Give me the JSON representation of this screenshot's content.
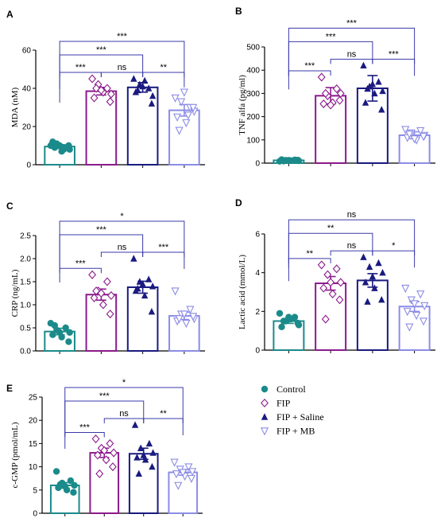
{
  "groups": [
    {
      "name": "Control",
      "color": "#1b8a8a",
      "marker": "circle"
    },
    {
      "name": "FIP",
      "color": "#8b1a8b",
      "marker": "diamond-open"
    },
    {
      "name": "FIP + Saline",
      "color": "#1a1a80",
      "marker": "triangle-filled"
    },
    {
      "name": "FIP + MB",
      "color": "#8c8ce6",
      "marker": "triangle-down-open"
    }
  ],
  "chart_data": [
    {
      "panel": "A",
      "type": "bar",
      "ylabel": "MDA (nM)",
      "ylim": [
        0,
        60
      ],
      "yticks": [
        0,
        20,
        40,
        60
      ],
      "yticks_labels": [
        "0",
        "20",
        "40",
        "60"
      ],
      "categories": [
        "Control",
        "FIP",
        "FIP + Saline",
        "FIP + MB"
      ],
      "values": [
        9.5,
        38.5,
        40.5,
        28.5
      ],
      "errors": [
        1.0,
        2.0,
        2.5,
        3.0
      ],
      "points": [
        [
          10,
          9,
          11,
          8,
          12,
          7,
          10,
          9,
          10,
          8
        ],
        [
          45,
          40,
          42,
          37,
          35,
          38,
          33,
          40,
          39
        ],
        [
          45,
          40,
          42,
          36,
          38,
          44,
          32,
          39,
          41
        ],
        [
          35,
          30,
          33,
          28,
          25,
          22,
          30,
          18,
          38,
          26
        ]
      ],
      "comparisons": [
        {
          "from": 0,
          "to": 1,
          "label": "***",
          "level": 1
        },
        {
          "from": 1,
          "to": 2,
          "label": "ns",
          "level": 1
        },
        {
          "from": 2,
          "to": 3,
          "label": "**",
          "level": 1
        },
        {
          "from": 0,
          "to": 2,
          "label": "***",
          "level": 2
        },
        {
          "from": 0,
          "to": 3,
          "label": "***",
          "level": 3
        }
      ]
    },
    {
      "panel": "B",
      "type": "bar",
      "ylabel": "TNF alfa (pg/ml)",
      "ylim": [
        0,
        500
      ],
      "yticks": [
        0,
        100,
        200,
        300,
        400,
        500
      ],
      "yticks_labels": [
        "0",
        "100",
        "200",
        "300",
        "400",
        "500"
      ],
      "categories": [
        "Control",
        "FIP",
        "FIP + Saline",
        "FIP + MB"
      ],
      "values": [
        12,
        290,
        322,
        120
      ],
      "errors": [
        4,
        35,
        55,
        15
      ],
      "points": [
        [
          8,
          14,
          12,
          10,
          15,
          11,
          13,
          9,
          12
        ],
        [
          370,
          320,
          290,
          300,
          255,
          260,
          270,
          300,
          250
        ],
        [
          420,
          350,
          330,
          310,
          260,
          300,
          230,
          320,
          340
        ],
        [
          145,
          140,
          130,
          120,
          110,
          100,
          115,
          125,
          105
        ]
      ],
      "comparisons": [
        {
          "from": 0,
          "to": 1,
          "label": "***",
          "level": 1
        },
        {
          "from": 1,
          "to": 2,
          "label": "ns",
          "level": 1
        },
        {
          "from": 2,
          "to": 3,
          "label": "***",
          "level": 1
        },
        {
          "from": 0,
          "to": 2,
          "label": "***",
          "level": 2
        },
        {
          "from": 0,
          "to": 3,
          "label": "***",
          "level": 3
        }
      ]
    },
    {
      "panel": "C",
      "type": "bar",
      "ylabel": "CRP (ng/mL)",
      "ylim": [
        0,
        2.5
      ],
      "yticks": [
        0,
        0.5,
        1.0,
        1.5,
        2.0,
        2.5
      ],
      "yticks_labels": [
        "0.0",
        "0.5",
        "1.0",
        "1.5",
        "2.0",
        "2.5"
      ],
      "categories": [
        "Control",
        "FIP",
        "FIP + Saline",
        "FIP + MB"
      ],
      "values": [
        0.42,
        1.22,
        1.38,
        0.76
      ],
      "errors": [
        0.07,
        0.12,
        0.13,
        0.08
      ],
      "points": [
        [
          0.6,
          0.5,
          0.45,
          0.4,
          0.35,
          0.3,
          0.2,
          0.55,
          0.4
        ],
        [
          1.65,
          1.5,
          1.3,
          1.2,
          1.15,
          1.0,
          0.8,
          1.3,
          1.25
        ],
        [
          2.0,
          1.55,
          1.5,
          1.4,
          1.3,
          1.2,
          0.85,
          1.35,
          1.45
        ],
        [
          1.3,
          0.9,
          0.8,
          0.7,
          0.65,
          0.6,
          0.75,
          0.7,
          0.8
        ]
      ],
      "comparisons": [
        {
          "from": 0,
          "to": 1,
          "label": "***",
          "level": 1
        },
        {
          "from": 1,
          "to": 2,
          "label": "ns",
          "level": 1
        },
        {
          "from": 2,
          "to": 3,
          "label": "***",
          "level": 1
        },
        {
          "from": 0,
          "to": 2,
          "label": "***",
          "level": 2
        },
        {
          "from": 0,
          "to": 3,
          "label": "*",
          "level": 3
        }
      ]
    },
    {
      "panel": "D",
      "type": "bar",
      "ylabel": "Lactic acid (mmol/L)",
      "ylim": [
        0,
        6
      ],
      "yticks": [
        0,
        2,
        4,
        6
      ],
      "yticks_labels": [
        "0",
        "2",
        "4",
        "6"
      ],
      "categories": [
        "Control",
        "FIP",
        "FIP + Saline",
        "FIP + MB"
      ],
      "values": [
        1.5,
        3.45,
        3.6,
        2.25
      ],
      "errors": [
        0.12,
        0.35,
        0.35,
        0.25
      ],
      "points": [
        [
          1.9,
          1.7,
          1.5,
          1.3,
          1.2,
          1.6,
          1.4,
          1.5,
          1.7
        ],
        [
          4.4,
          4.2,
          3.9,
          3.5,
          3.2,
          2.9,
          2.6,
          1.6,
          3.5
        ],
        [
          4.8,
          4.5,
          4.3,
          4.0,
          3.5,
          3.2,
          2.6,
          2.5,
          3.8
        ],
        [
          3.2,
          2.9,
          2.6,
          2.3,
          2.0,
          1.8,
          1.5,
          1.2,
          2.4
        ]
      ],
      "comparisons": [
        {
          "from": 0,
          "to": 1,
          "label": "**",
          "level": 1
        },
        {
          "from": 1,
          "to": 2,
          "label": "ns",
          "level": 1
        },
        {
          "from": 2,
          "to": 3,
          "label": "*",
          "level": 1
        },
        {
          "from": 0,
          "to": 2,
          "label": "**",
          "level": 2
        },
        {
          "from": 0,
          "to": 3,
          "label": "ns",
          "level": 3
        }
      ]
    },
    {
      "panel": "E",
      "type": "bar",
      "ylabel": "c-GMP (pmol/mL)",
      "ylim": [
        0,
        25
      ],
      "yticks": [
        0,
        5,
        10,
        15,
        20,
        25
      ],
      "yticks_labels": [
        "0",
        "5",
        "10",
        "15",
        "20",
        "25"
      ],
      "categories": [
        "Control",
        "FIP",
        "FIP + Saline",
        "FIP + MB"
      ],
      "values": [
        6.0,
        13.0,
        12.8,
        8.8
      ],
      "errors": [
        0.6,
        1.0,
        1.2,
        0.6
      ],
      "points": [
        [
          9.0,
          7.0,
          6.5,
          6.0,
          5.5,
          5.0,
          4.5,
          6.2,
          5.8
        ],
        [
          16.0,
          15.0,
          14.0,
          13.0,
          12.5,
          11.5,
          10.0,
          8.5,
          13.5
        ],
        [
          19.0,
          15.0,
          14.0,
          13.0,
          12.0,
          11.5,
          10.0,
          8.5,
          12.5
        ],
        [
          11.0,
          10.0,
          9.5,
          9.0,
          8.5,
          8.0,
          7.5,
          6.0,
          8.8
        ]
      ],
      "comparisons": [
        {
          "from": 0,
          "to": 1,
          "label": "***",
          "level": 1
        },
        {
          "from": 1,
          "to": 2,
          "label": "ns",
          "level": 1
        },
        {
          "from": 2,
          "to": 3,
          "label": "**",
          "level": 1
        },
        {
          "from": 0,
          "to": 2,
          "label": "***",
          "level": 2
        },
        {
          "from": 0,
          "to": 3,
          "label": "*",
          "level": 3
        }
      ]
    }
  ]
}
